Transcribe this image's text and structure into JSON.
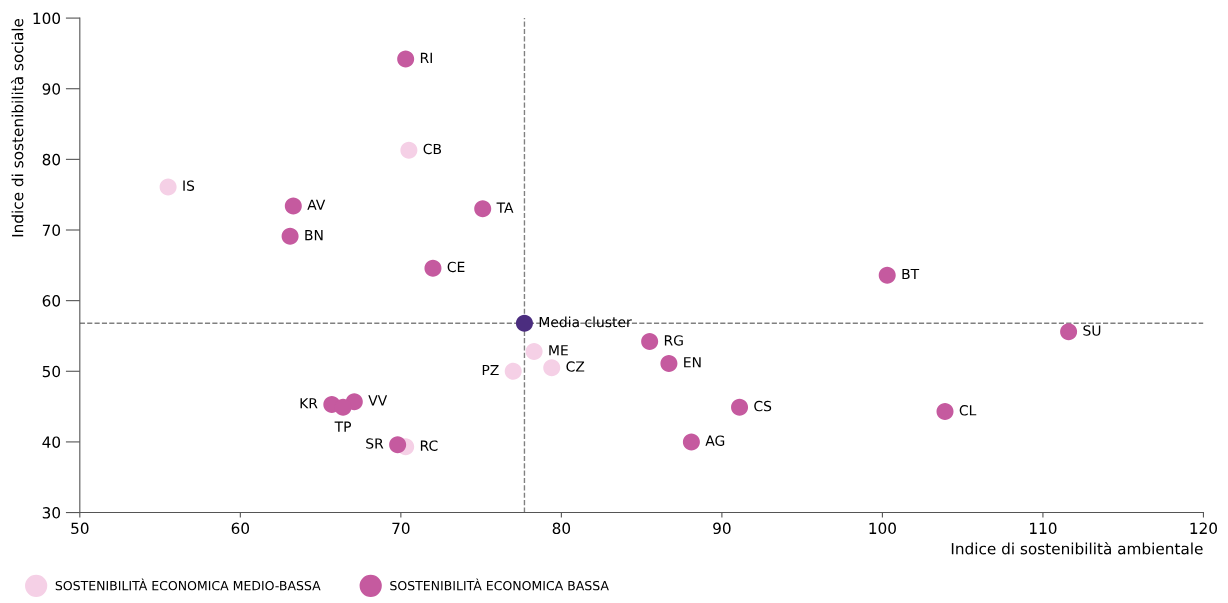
{
  "chart_data": {
    "type": "scatter",
    "xlabel": "Indice di sostenibilità ambientale",
    "ylabel": "Indice di sostenibilità sociale",
    "xlim": [
      50,
      120
    ],
    "ylim": [
      30,
      100
    ],
    "xticks": [
      50,
      60,
      70,
      80,
      90,
      100,
      110,
      120
    ],
    "yticks": [
      30,
      40,
      50,
      60,
      70,
      80,
      90,
      100
    ],
    "grid": false,
    "legend": "bottom",
    "marker": "circle",
    "series": [
      {
        "name": "SOSTENIBILITÀ ECONOMICA MEDIO-BASSA",
        "color": "#f5d0e6",
        "x": [
          70.5,
          55.5,
          78.3,
          79.4,
          77.0,
          70.3
        ],
        "values": [
          81.3,
          76.1,
          52.8,
          50.5,
          50.0,
          39.3
        ]
      },
      {
        "name": "SOSTENIBILITÀ ECONOMICA BASSA",
        "color": "#c55a9f",
        "x": [
          70.3,
          63.3,
          75.1,
          63.1,
          72.0,
          100.3,
          111.6,
          85.5,
          86.7,
          65.7,
          67.1,
          66.4,
          91.1,
          103.9,
          69.8,
          88.1
        ],
        "values": [
          94.2,
          73.4,
          73.0,
          69.1,
          64.6,
          63.6,
          55.6,
          54.2,
          51.1,
          45.3,
          45.7,
          44.9,
          44.9,
          44.3,
          39.6,
          40.0
        ]
      },
      {
        "color": "#4b2d7f",
        "x": [
          77.7
        ],
        "values": [
          56.8
        ]
      }
    ],
    "ref_lines": [
      {
        "axis": "x",
        "value": 77.7,
        "color": "#808080",
        "line_style": "dashed"
      },
      {
        "axis": "y",
        "value": 56.8,
        "color": "#808080",
        "line_style": "dashed"
      }
    ],
    "annotations": [
      {
        "text": "Media cluster",
        "x": 77.7,
        "y": 56.8
      },
      {
        "text": "RI",
        "x": 70.3,
        "y": 94.2
      },
      {
        "text": "CB",
        "x": 70.5,
        "y": 81.3
      },
      {
        "text": "IS",
        "x": 55.5,
        "y": 76.1
      },
      {
        "text": "AV",
        "x": 63.3,
        "y": 73.4
      },
      {
        "text": "TA",
        "x": 75.1,
        "y": 73.0
      },
      {
        "text": "BN",
        "x": 63.1,
        "y": 69.1
      },
      {
        "text": "CE",
        "x": 72.0,
        "y": 64.6
      },
      {
        "text": "BT",
        "x": 100.3,
        "y": 63.6
      },
      {
        "text": "SU",
        "x": 111.6,
        "y": 55.6
      },
      {
        "text": "RG",
        "x": 85.5,
        "y": 54.2
      },
      {
        "text": "ME",
        "x": 78.3,
        "y": 52.8
      },
      {
        "text": "EN",
        "x": 86.7,
        "y": 51.1
      },
      {
        "text": "CZ",
        "x": 79.4,
        "y": 50.5
      },
      {
        "text": "PZ",
        "x": 77.0,
        "y": 50.0
      },
      {
        "text": "KR",
        "x": 65.7,
        "y": 45.3
      },
      {
        "text": "VV",
        "x": 67.1,
        "y": 45.7
      },
      {
        "text": "TP",
        "x": 66.4,
        "y": 44.9
      },
      {
        "text": "CS",
        "x": 91.1,
        "y": 44.9
      },
      {
        "text": "CL",
        "x": 103.9,
        "y": 44.3
      },
      {
        "text": "SR",
        "x": 69.8,
        "y": 39.6
      },
      {
        "text": "RC",
        "x": 70.3,
        "y": 39.3
      },
      {
        "text": "AG",
        "x": 88.1,
        "y": 40.0
      }
    ]
  }
}
